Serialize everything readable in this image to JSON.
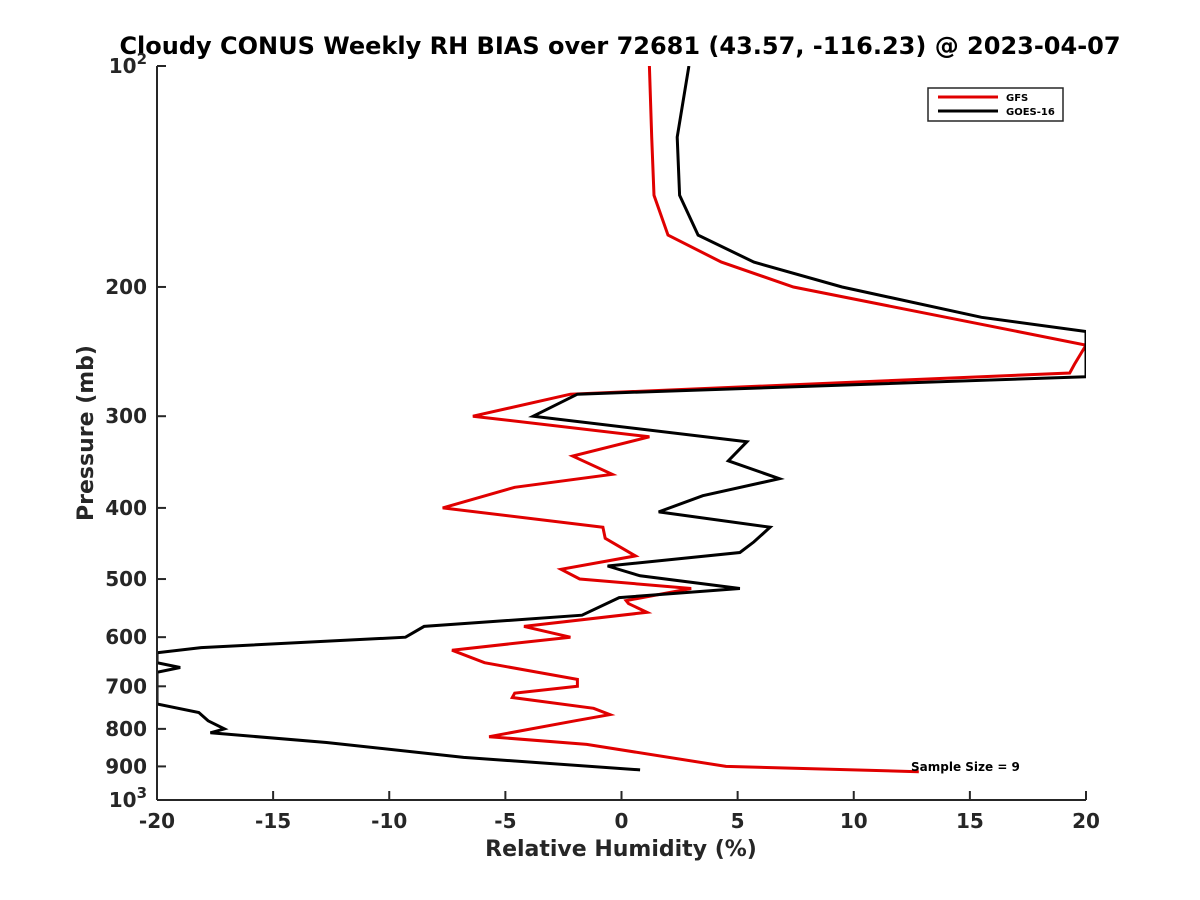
{
  "chart_data": {
    "type": "line",
    "title": "Cloudy CONUS Weekly RH BIAS over 72681 (43.57, -116.23) @ 2023-04-07",
    "xlabel": "Relative Humidity (%)",
    "ylabel": "Pressure (mb)",
    "xlim": [
      -20,
      20
    ],
    "ylim": [
      100,
      1000
    ],
    "y_scale": "log",
    "y_reversed": true,
    "grid": false,
    "legend_position": "top-right",
    "x_ticks": [
      "-20",
      "-15",
      "-10",
      "-5",
      "0",
      "5",
      "10",
      "15",
      "20"
    ],
    "y_ticks": [
      {
        "value": 100,
        "label": "10",
        "sup": "2"
      },
      {
        "value": 200,
        "label": "200",
        "sup": ""
      },
      {
        "value": 300,
        "label": "300",
        "sup": ""
      },
      {
        "value": 400,
        "label": "400",
        "sup": ""
      },
      {
        "value": 500,
        "label": "500",
        "sup": ""
      },
      {
        "value": 600,
        "label": "600",
        "sup": ""
      },
      {
        "value": 700,
        "label": "700",
        "sup": ""
      },
      {
        "value": 800,
        "label": "800",
        "sup": ""
      },
      {
        "value": 900,
        "label": "900",
        "sup": ""
      },
      {
        "value": 1000,
        "label": "10",
        "sup": "3"
      }
    ],
    "annotation": "Sample Size = 9",
    "series": [
      {
        "name": "GFS",
        "color": "#e00000",
        "points": [
          [
            1.2,
            100
          ],
          [
            1.3,
            125
          ],
          [
            1.4,
            150
          ],
          [
            2.0,
            170
          ],
          [
            4.3,
            185
          ],
          [
            7.4,
            200
          ],
          [
            20.0,
            240
          ],
          [
            19.5,
            255
          ],
          [
            19.3,
            262
          ],
          [
            -2.2,
            280
          ],
          [
            -6.4,
            300
          ],
          [
            1.2,
            320
          ],
          [
            -2.1,
            340
          ],
          [
            -0.4,
            360
          ],
          [
            -4.6,
            375
          ],
          [
            -7.7,
            400
          ],
          [
            -0.8,
            425
          ],
          [
            -0.7,
            440
          ],
          [
            0.6,
            465
          ],
          [
            -2.6,
            485
          ],
          [
            -1.8,
            500
          ],
          [
            3.0,
            515
          ],
          [
            0.2,
            535
          ],
          [
            0.3,
            540
          ],
          [
            1.1,
            555
          ],
          [
            -4.2,
            580
          ],
          [
            -2.2,
            600
          ],
          [
            -7.3,
            625
          ],
          [
            -5.9,
            650
          ],
          [
            -1.9,
            685
          ],
          [
            -1.9,
            700
          ],
          [
            -4.6,
            715
          ],
          [
            -4.7,
            725
          ],
          [
            -1.2,
            750
          ],
          [
            -0.5,
            765
          ],
          [
            -2.0,
            780
          ],
          [
            -5.7,
            820
          ],
          [
            -1.5,
            840
          ],
          [
            4.5,
            900
          ],
          [
            12.8,
            915
          ]
        ]
      },
      {
        "name": "GOES-16",
        "color": "#000000",
        "points": [
          [
            2.9,
            100
          ],
          [
            2.4,
            125
          ],
          [
            2.5,
            150
          ],
          [
            3.3,
            170
          ],
          [
            5.7,
            185
          ],
          [
            9.5,
            200
          ],
          [
            15.5,
            220
          ],
          [
            20.0,
            230
          ],
          [
            20.0,
            265
          ],
          [
            -1.9,
            280
          ],
          [
            -3.8,
            300
          ],
          [
            5.4,
            325
          ],
          [
            4.6,
            345
          ],
          [
            6.8,
            365
          ],
          [
            3.5,
            385
          ],
          [
            1.6,
            405
          ],
          [
            6.4,
            425
          ],
          [
            5.7,
            445
          ],
          [
            5.1,
            460
          ],
          [
            -0.6,
            480
          ],
          [
            0.8,
            495
          ],
          [
            5.1,
            515
          ],
          [
            -0.1,
            530
          ],
          [
            -1.7,
            560
          ],
          [
            -8.5,
            580
          ],
          [
            -9.3,
            600
          ],
          [
            -18.1,
            620
          ],
          [
            -20.0,
            630
          ],
          [
            -20.0,
            650
          ],
          [
            -19.0,
            660
          ],
          [
            -20.0,
            670
          ],
          [
            -20.0,
            740
          ],
          [
            -18.2,
            760
          ],
          [
            -17.8,
            780
          ],
          [
            -17.1,
            800
          ],
          [
            -17.7,
            810
          ],
          [
            -12.7,
            835
          ],
          [
            -6.8,
            875
          ],
          [
            0.8,
            910
          ]
        ]
      }
    ]
  }
}
